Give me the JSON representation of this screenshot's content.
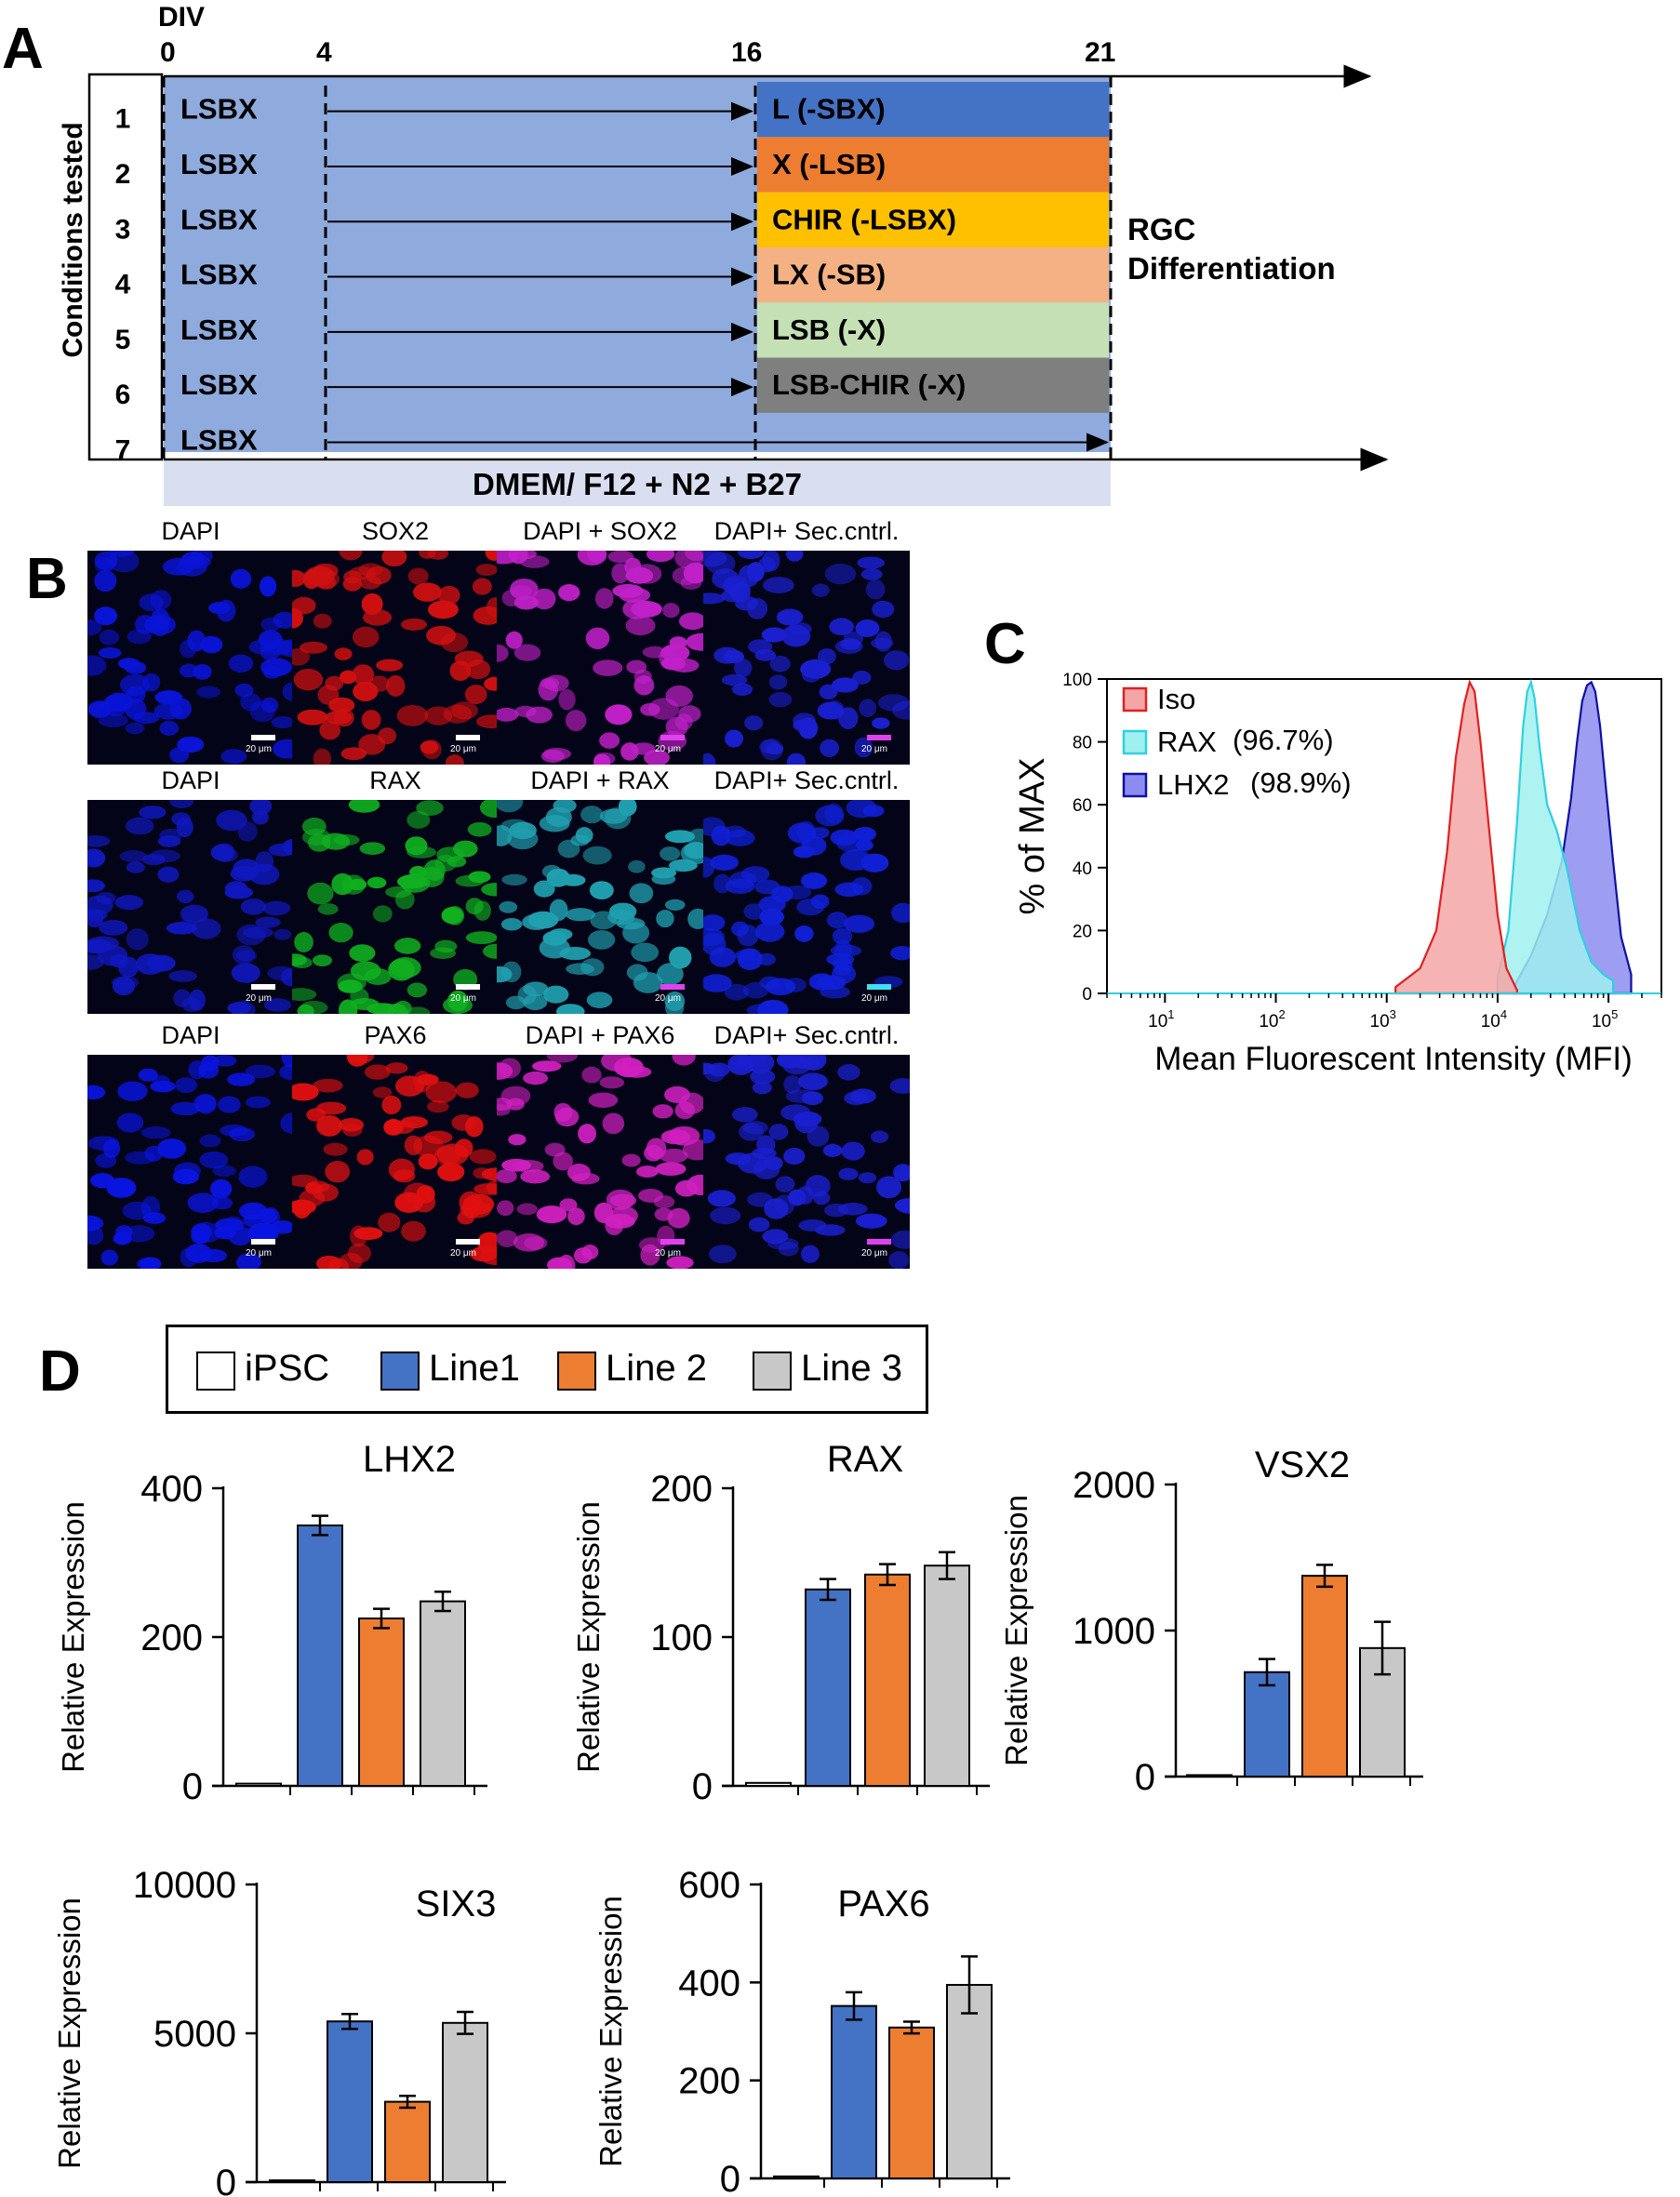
{
  "panels": {
    "a": "A",
    "b": "B",
    "c": "C",
    "d": "D"
  },
  "panel_a": {
    "div_label": "DIV",
    "day_ticks": [
      "0",
      "4",
      "16",
      "21"
    ],
    "y_axis_title": "Conditions tested",
    "base_medium": "LSBX",
    "conditions": [
      {
        "num": "1",
        "late_label": "L (-SBX)",
        "color": "#4472c4"
      },
      {
        "num": "2",
        "late_label": "X (-LSB)",
        "color": "#ed7d31"
      },
      {
        "num": "3",
        "late_label": "CHIR (-LSBX)",
        "color": "#ffc000"
      },
      {
        "num": "4",
        "late_label": "LX (-SB)",
        "color": "#f4b183"
      },
      {
        "num": "5",
        "late_label": "LSB (-X)",
        "color": "#c5e0b4"
      },
      {
        "num": "6",
        "late_label": "LSB-CHIR (-X)",
        "color": "#7f7f7f"
      },
      {
        "num": "7",
        "late_label": "",
        "color": "#8faadc"
      }
    ],
    "rgc_line1": "RGC",
    "rgc_line2": "Differentiation",
    "medium_bar": "DMEM/ F12 + N2 + B27",
    "block_color": "#8faadc",
    "medium_color": "#d9dff0"
  },
  "panel_b": {
    "rows": [
      {
        "labels": [
          "DAPI",
          "SOX2",
          "DAPI + SOX2",
          "DAPI+ Sec.cntrl."
        ],
        "colors": [
          "#0a14d8",
          "#d01010",
          "#c020c8",
          "#1a20d0"
        ]
      },
      {
        "labels": [
          "DAPI",
          "RAX",
          "DAPI + RAX",
          "DAPI+ Sec.cntrl."
        ],
        "colors": [
          "#1018c0",
          "#10b020",
          "#20a0b0",
          "#1020d8"
        ]
      },
      {
        "labels": [
          "DAPI",
          "PAX6",
          "DAPI + PAX6",
          "DAPI+ Sec.cntrl."
        ],
        "colors": [
          "#0a14e0",
          "#e01010",
          "#d020c0",
          "#1a20d0"
        ]
      }
    ],
    "scale_label": "20 μm"
  },
  "chart_data": [
    {
      "type": "area",
      "panel": "C",
      "title": "",
      "xlabel": "Mean Fluorescent Intensity (MFI)",
      "ylabel": "% of MAX",
      "xscale": "log",
      "xlim": [
        3,
        300000
      ],
      "ylim": [
        0,
        100
      ],
      "yticks": [
        "0",
        "20",
        "40",
        "60",
        "80",
        "100"
      ],
      "xtick_bases": [
        "10",
        "10",
        "10",
        "10",
        "10"
      ],
      "xtick_exps": [
        "1",
        "2",
        "3",
        "4",
        "5"
      ],
      "legend": [
        {
          "name": "Iso",
          "pct": "",
          "fill": "#f4a6a6",
          "stroke": "#e02020"
        },
        {
          "name": "RAX",
          "pct": "(96.7%)",
          "fill": "#a0f0f0",
          "stroke": "#30d0e0"
        },
        {
          "name": "LHX2",
          "pct": "(98.9%)",
          "fill": "#8c8cf0",
          "stroke": "#1010a0"
        }
      ],
      "series": [
        {
          "name": "Iso",
          "peak_mfi": 5500,
          "x": [
            1200,
            2000,
            2800,
            3500,
            4200,
            5000,
            5600,
            6200,
            7000,
            8500,
            10000,
            12000,
            15000
          ],
          "y": [
            2,
            8,
            20,
            45,
            75,
            92,
            99,
            96,
            80,
            50,
            25,
            8,
            1
          ]
        },
        {
          "name": "RAX",
          "peak_mfi": 20000,
          "x": [
            10000,
            12500,
            15000,
            17000,
            18500,
            20000,
            21500,
            24000,
            28000,
            34000,
            42000,
            55000,
            70000,
            90000,
            110000
          ],
          "y": [
            5,
            20,
            55,
            85,
            96,
            99,
            94,
            78,
            60,
            52,
            40,
            20,
            10,
            6,
            4
          ]
        },
        {
          "name": "LHX2",
          "peak_mfi": 75000,
          "x": [
            14000,
            20000,
            28000,
            38000,
            46000,
            52000,
            58000,
            64000,
            70000,
            76000,
            84000,
            95000,
            110000,
            130000,
            160000
          ],
          "y": [
            2,
            12,
            25,
            42,
            62,
            80,
            93,
            98,
            99,
            96,
            85,
            65,
            42,
            18,
            6
          ]
        }
      ]
    },
    {
      "type": "bar",
      "panel": "D",
      "title": "LHX2",
      "ylabel": "Relative Expression",
      "categories": [
        "iPSC",
        "Line1",
        "Line 2",
        "Line 3"
      ],
      "values": [
        3,
        350,
        225,
        248
      ],
      "errors": [
        0,
        13,
        13,
        13
      ],
      "ylim": [
        0,
        400
      ],
      "yticks": [
        "0",
        "200",
        "400"
      ]
    },
    {
      "type": "bar",
      "panel": "D",
      "title": "RAX",
      "ylabel": "Relative Expression",
      "categories": [
        "iPSC",
        "Line1",
        "Line 2",
        "Line 3"
      ],
      "values": [
        2,
        132,
        142,
        148
      ],
      "errors": [
        0,
        7,
        7,
        9
      ],
      "ylim": [
        0,
        200
      ],
      "yticks": [
        "0",
        "100",
        "200"
      ]
    },
    {
      "type": "bar",
      "panel": "D",
      "title": "VSX2",
      "ylabel": "Relative Expression",
      "categories": [
        "iPSC",
        "Line1",
        "Line 2",
        "Line 3"
      ],
      "values": [
        10,
        715,
        1375,
        880
      ],
      "errors": [
        0,
        90,
        75,
        180
      ],
      "ylim": [
        0,
        2000
      ],
      "yticks": [
        "0",
        "1000",
        "2000"
      ]
    },
    {
      "type": "bar",
      "panel": "D",
      "title": "SIX3",
      "ylabel": "Relative Expression",
      "categories": [
        "iPSC",
        "Line1",
        "Line 2",
        "Line 3"
      ],
      "values": [
        60,
        5400,
        2700,
        5350
      ],
      "errors": [
        0,
        250,
        200,
        370
      ],
      "ylim": [
        0,
        10000
      ],
      "yticks": [
        "0",
        "5000",
        "10000"
      ]
    },
    {
      "type": "bar",
      "panel": "D",
      "title": "PAX6",
      "ylabel": "Relative Expression",
      "categories": [
        "iPSC",
        "Line1",
        "Line 2",
        "Line 3"
      ],
      "values": [
        4,
        352,
        308,
        395
      ],
      "errors": [
        0,
        28,
        12,
        58
      ],
      "ylim": [
        0,
        600
      ],
      "yticks": [
        "0",
        "200",
        "400",
        "600"
      ]
    }
  ],
  "legend_d": {
    "items": [
      {
        "label": "iPSC",
        "color": "#ffffff"
      },
      {
        "label": "Line1",
        "color": "#4472c4"
      },
      {
        "label": "Line 2",
        "color": "#ed7d31"
      },
      {
        "label": "Line 3",
        "color": "#c8c8c8"
      }
    ]
  }
}
